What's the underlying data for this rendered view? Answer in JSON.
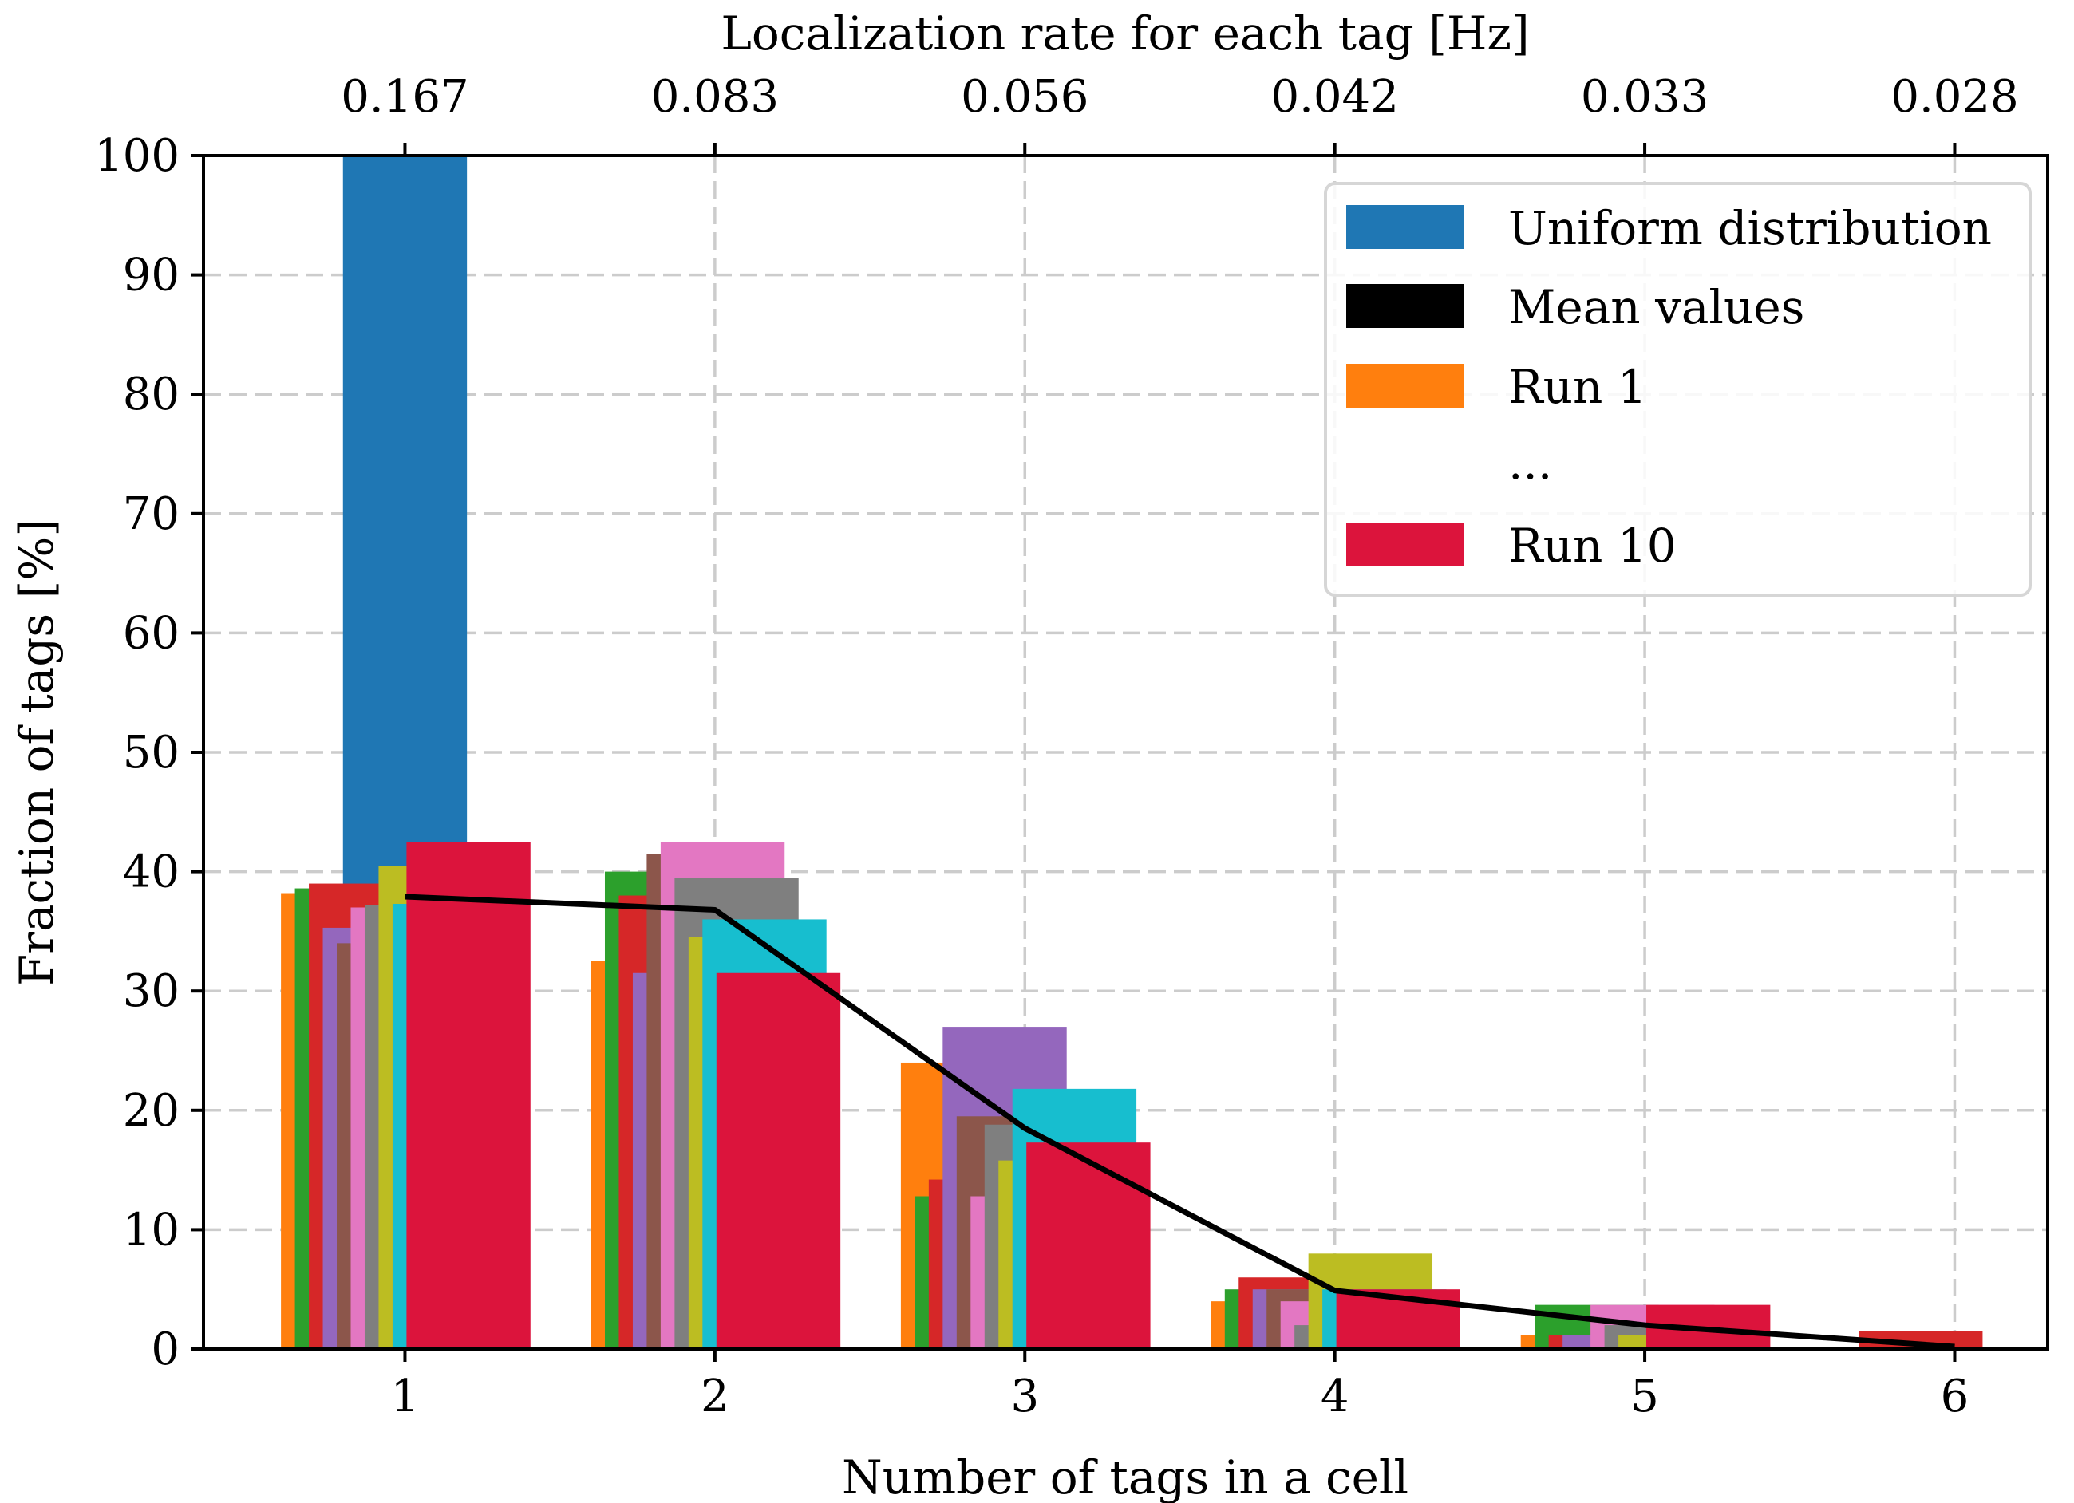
{
  "chart_data": {
    "type": "bar",
    "xlabel": "Number of tags in a cell",
    "ylabel": "Fraction of tags [%]",
    "top_xlabel": "Localization rate for each tag [Hz]",
    "grid": true,
    "legend_position": "top-right",
    "xlim": [
      0.35,
      6.3
    ],
    "ylim": [
      0,
      100
    ],
    "x_ticks": [
      1,
      2,
      3,
      4,
      5,
      6
    ],
    "x_tick_labels": [
      "1",
      "2",
      "3",
      "4",
      "5",
      "6"
    ],
    "y_ticks": [
      0,
      10,
      20,
      30,
      40,
      50,
      60,
      70,
      80,
      90,
      100
    ],
    "y_tick_labels": [
      "0",
      "10",
      "20",
      "30",
      "40",
      "50",
      "60",
      "70",
      "80",
      "90",
      "100"
    ],
    "top_tick_labels": [
      "0.167",
      "0.083",
      "0.056",
      "0.042",
      "0.033",
      "0.028"
    ],
    "legend": [
      {
        "label": "Uniform distribution",
        "color": "#1f77b4"
      },
      {
        "label": "Mean values",
        "color": "#000000"
      },
      {
        "label": "Run 1",
        "color": "#ff7f0e"
      },
      {
        "label": "...",
        "color": ""
      },
      {
        "label": "Run 10",
        "color": "#dc143c"
      }
    ],
    "uniform_distribution": {
      "x": [
        1
      ],
      "values": [
        100
      ],
      "color": "#1f77b4"
    },
    "mean_values": {
      "x": [
        1,
        2,
        3,
        4,
        5,
        6
      ],
      "values": [
        37.9,
        36.8,
        18.5,
        4.9,
        2.0,
        0.2
      ],
      "color": "#000000"
    },
    "runs": [
      {
        "name": "Run 1",
        "color": "#ff7f0e",
        "values": [
          38.2,
          32.5,
          24.0,
          4.0,
          1.2,
          0
        ]
      },
      {
        "name": "Run 2",
        "color": "#2ca02c",
        "values": [
          38.6,
          40.0,
          12.8,
          5.0,
          3.7,
          0
        ]
      },
      {
        "name": "Run 3",
        "color": "#d62728",
        "values": [
          39.0,
          38.0,
          14.2,
          6.0,
          1.2,
          1.5
        ]
      },
      {
        "name": "Run 4",
        "color": "#9467bd",
        "values": [
          35.3,
          31.5,
          27.0,
          5.0,
          1.2,
          0
        ]
      },
      {
        "name": "Run 5",
        "color": "#8c564b",
        "values": [
          34.0,
          41.5,
          19.5,
          5.0,
          0,
          0
        ]
      },
      {
        "name": "Run 6",
        "color": "#e377c2",
        "values": [
          37.0,
          42.5,
          12.8,
          4.0,
          3.7,
          0
        ]
      },
      {
        "name": "Run 7",
        "color": "#7f7f7f",
        "values": [
          37.2,
          39.5,
          18.8,
          2.0,
          2.0,
          0
        ]
      },
      {
        "name": "Run 8",
        "color": "#bcbd22",
        "values": [
          40.5,
          34.5,
          15.8,
          8.0,
          1.2,
          0
        ]
      },
      {
        "name": "Run 9",
        "color": "#17becf",
        "values": [
          37.3,
          36.0,
          21.8,
          5.0,
          0,
          0
        ]
      },
      {
        "name": "Run 10",
        "color": "#dc143c",
        "values": [
          42.5,
          31.5,
          17.3,
          5.0,
          3.7,
          0
        ]
      }
    ]
  }
}
